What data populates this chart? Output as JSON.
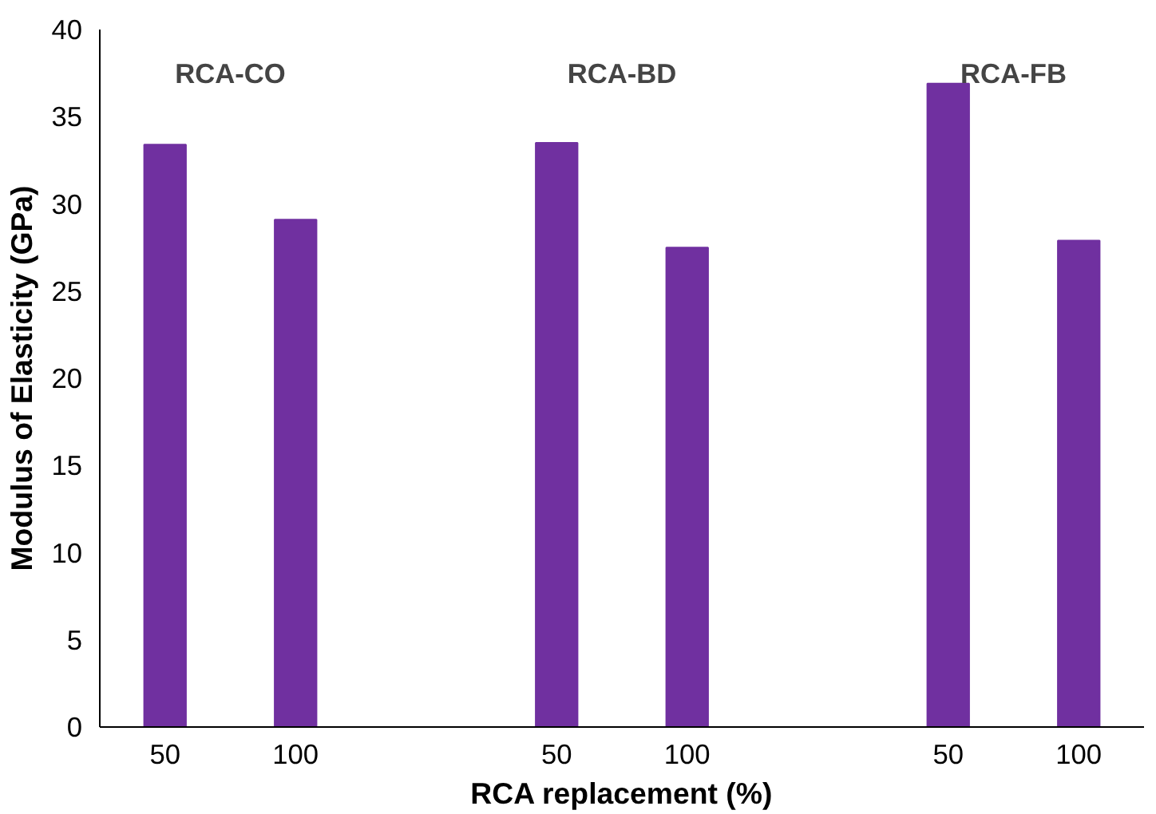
{
  "chart_data": {
    "type": "bar",
    "xlabel": "RCA replacement (%)",
    "ylabel": "Modulus of Elasticity (GPa)",
    "categories": [
      "50",
      "100",
      null,
      "50",
      "100",
      null,
      "50",
      "100"
    ],
    "values": [
      33.4,
      29.1,
      null,
      33.5,
      27.5,
      null,
      36.9,
      27.9
    ],
    "color": "#7030a0",
    "ylim": [
      0,
      40
    ],
    "yticks": [
      0,
      5,
      10,
      15,
      20,
      25,
      30,
      35,
      40
    ],
    "grid": false,
    "annotations": [
      "RCA-CO",
      "RCA-BD",
      "RCA-FB"
    ]
  }
}
